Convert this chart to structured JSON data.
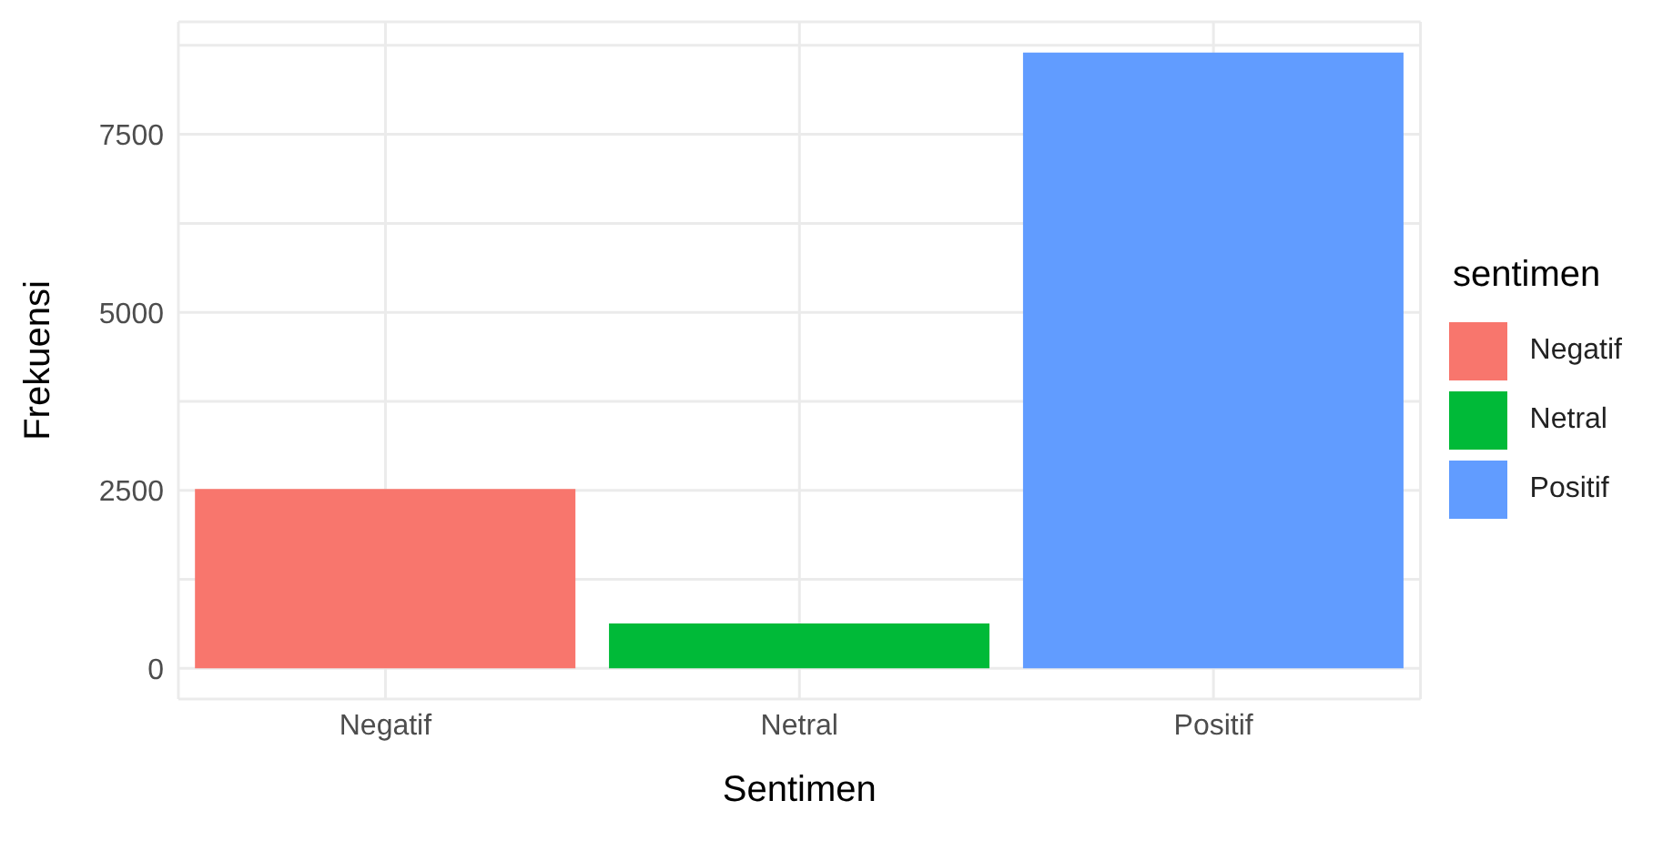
{
  "chart_data": {
    "type": "bar",
    "xlabel": "Sentimen",
    "ylabel": "Frekuensi",
    "legend_title": "sentimen",
    "categories": [
      "Negatif",
      "Netral",
      "Positif"
    ],
    "series": [
      {
        "name": "Negatif",
        "color": "#f8766d",
        "values": [
          2520,
          null,
          null
        ]
      },
      {
        "name": "Netral",
        "color": "#00ba38",
        "values": [
          null,
          630,
          null
        ]
      },
      {
        "name": "Positif",
        "color": "#619cff",
        "values": [
          null,
          null,
          8650
        ]
      }
    ],
    "stacked": true,
    "ylim": [
      -430,
      9080
    ],
    "yticks": [
      0,
      {
        "value": 1250,
        "label": null
      },
      2500,
      {
        "value": 3750,
        "label": null
      },
      5000,
      {
        "value": 6250,
        "label": null
      },
      7500,
      {
        "value": 8750,
        "label": null
      }
    ],
    "grid": true,
    "legend": "right"
  }
}
